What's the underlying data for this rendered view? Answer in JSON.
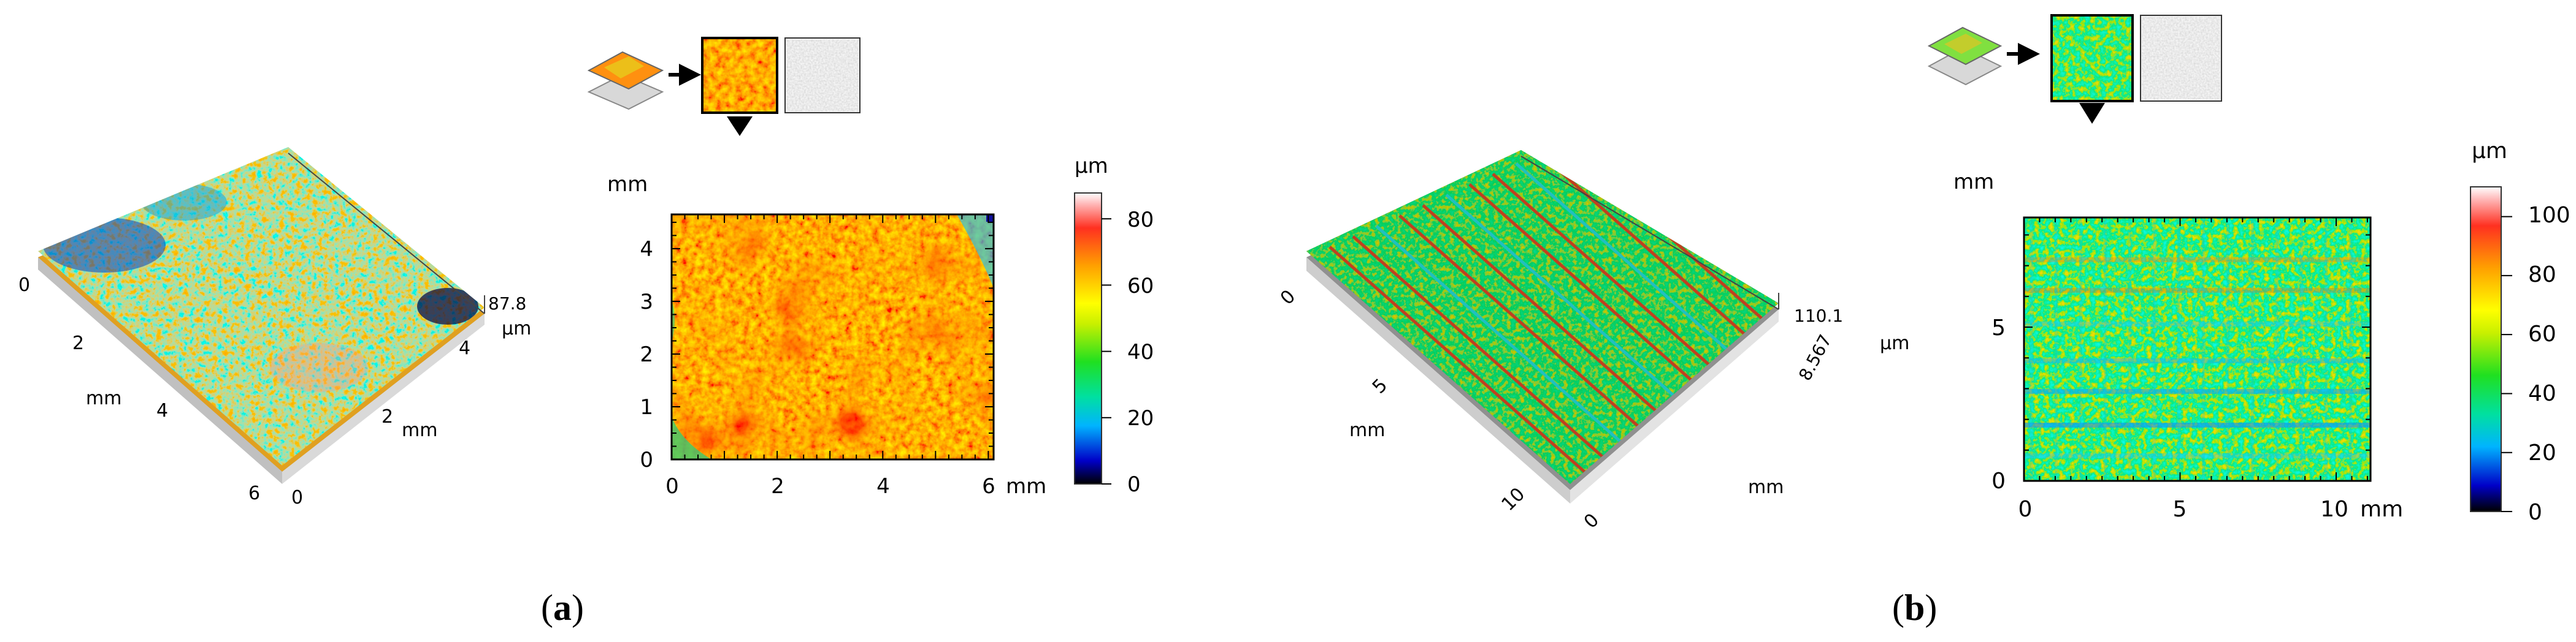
{
  "panel_a": {
    "caption_letter": "a",
    "iso": {
      "x_unit": "mm",
      "y_unit": "mm",
      "z_unit": "μm",
      "z_max": "87.8",
      "x_ticks": [
        "0",
        "2",
        "4",
        "6"
      ],
      "y_ticks": [
        "0",
        "2",
        "4"
      ]
    },
    "map": {
      "y_unit": "mm",
      "x_unit": "mm",
      "x_ticks": [
        "0",
        "2",
        "4",
        "6"
      ],
      "y_ticks": [
        "0",
        "1",
        "2",
        "3",
        "4"
      ],
      "x_range": [
        0,
        6.1
      ],
      "y_range": [
        0,
        4.65
      ]
    },
    "colorbar": {
      "unit": "μm",
      "ticks": [
        "0",
        "20",
        "40",
        "60",
        "80"
      ],
      "range": [
        0,
        87.8
      ]
    }
  },
  "panel_b": {
    "caption_letter": "b",
    "iso": {
      "x_unit": "mm",
      "y_unit": "mm",
      "z_unit": "μm",
      "z_max": "110.1",
      "y_extent_label": "8.567",
      "x_ticks": [
        "0",
        "5",
        "10"
      ],
      "y_ticks": [
        "0"
      ]
    },
    "map": {
      "y_unit": "mm",
      "x_unit": "mm",
      "x_ticks": [
        "0",
        "5",
        "10"
      ],
      "y_ticks": [
        "0",
        "5"
      ],
      "x_range": [
        0,
        11.1
      ],
      "y_range": [
        0,
        8.567
      ]
    },
    "colorbar": {
      "unit": "μm",
      "ticks": [
        "0",
        "20",
        "40",
        "60",
        "80",
        "100"
      ],
      "range": [
        0,
        110.1
      ]
    }
  },
  "colors": {
    "colormap": [
      "#000000",
      "#0000d0",
      "#00c8ff",
      "#00e0a0",
      "#20e020",
      "#b0f000",
      "#ffff00",
      "#ffb000",
      "#ff4010",
      "#ff2020",
      "#ffc8c8",
      "#ffffff"
    ]
  }
}
